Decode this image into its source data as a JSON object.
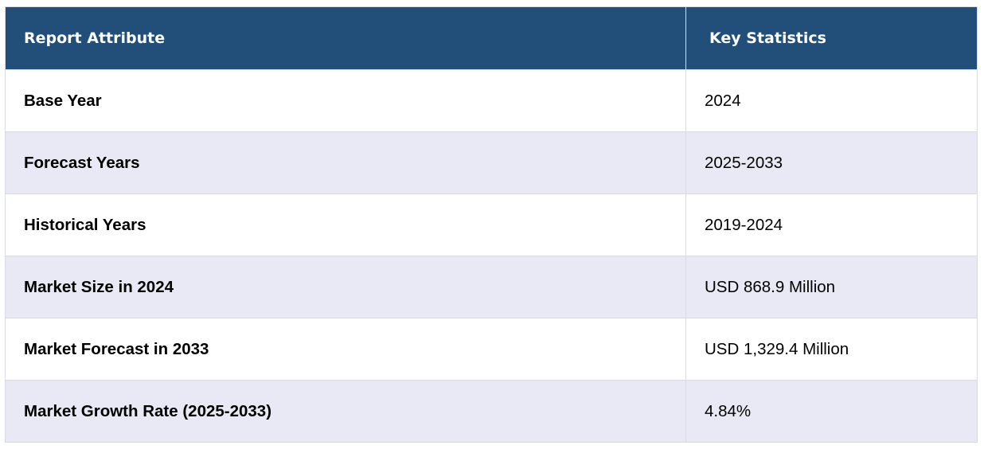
{
  "table": {
    "headers": [
      "Report Attribute",
      "Key Statistics"
    ],
    "rows": [
      {
        "attribute": "Base Year",
        "value": "2024"
      },
      {
        "attribute": "Forecast Years",
        "value": "2025-2033"
      },
      {
        "attribute": "Historical Years",
        "value": "2019-2024"
      },
      {
        "attribute": "Market Size in 2024",
        "value": "USD 868.9 Million"
      },
      {
        "attribute": "Market Forecast in 2033",
        "value": "USD 1,329.4 Million"
      },
      {
        "attribute": "Market Growth Rate (2025-2033)",
        "value": "4.84%"
      }
    ]
  },
  "colors": {
    "header_bg": "#224f7a",
    "header_text": "#ffffff",
    "stripe_bg": "#e8e9f4",
    "border": "#d9dbe3"
  }
}
